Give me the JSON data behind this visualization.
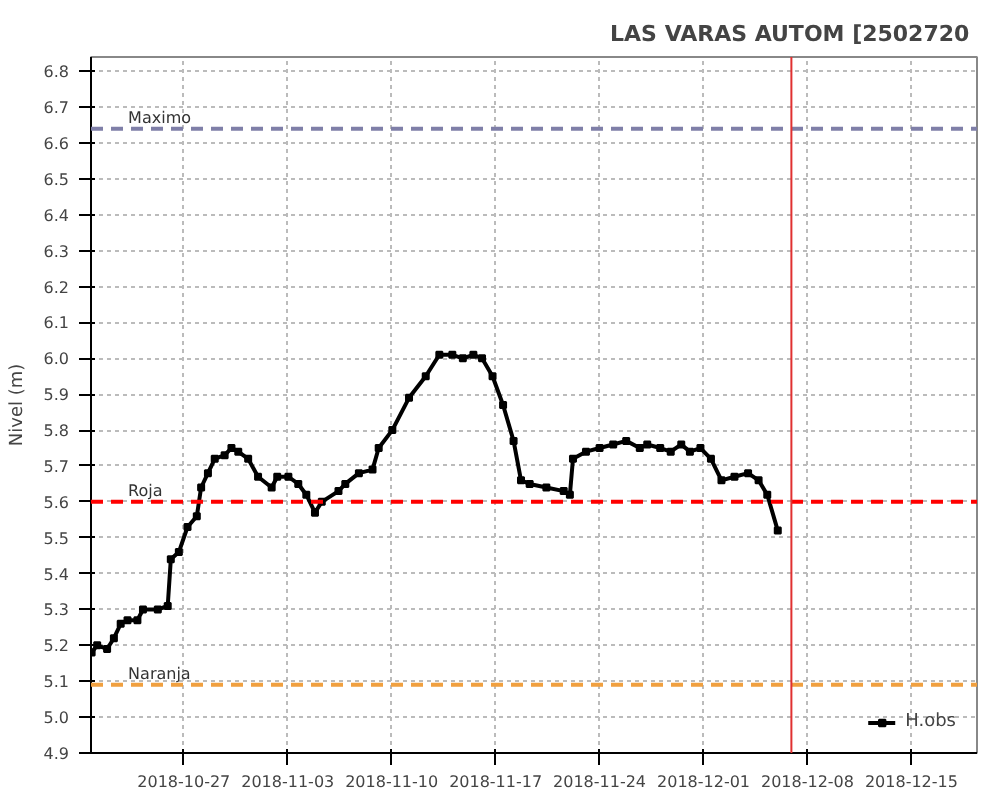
{
  "chart_data": {
    "type": "line",
    "title": "LAS VARAS AUTOM  [2502720",
    "ylabel": "Nivel (m)",
    "xlim": [
      "2018-10-20T18:00",
      "2018-12-19T10:00"
    ],
    "ylim": [
      4.9,
      6.84
    ],
    "xticks": [
      "2018-10-27",
      "2018-11-03",
      "2018-11-10",
      "2018-11-17",
      "2018-11-24",
      "2018-12-01",
      "2018-12-08",
      "2018-12-15"
    ],
    "yticks": [
      4.9,
      {
        "value": 5,
        "label": "5.0"
      },
      5.1,
      5.2,
      5.3,
      5.4,
      5.5,
      5.6,
      5.7,
      5.8,
      5.9,
      {
        "value": 6,
        "label": "6.0"
      },
      6.1,
      6.2,
      6.3,
      6.4,
      6.5,
      6.6,
      6.7,
      6.8
    ],
    "grid": true,
    "legend": "bottom right",
    "marker": "square",
    "line_style": "solid",
    "ref_lines": [
      {
        "axis": "y",
        "value": 6.64,
        "label": "Maximo",
        "color": "#7f7fa8",
        "line_style": "dashed"
      },
      {
        "axis": "y",
        "value": 5.6,
        "label": "Roja",
        "color": "#ff0000",
        "line_style": "dashed"
      },
      {
        "axis": "y",
        "value": 5.09,
        "label": "Naranja",
        "color": "#f0a040",
        "line_style": "dashed"
      },
      {
        "axis": "x",
        "value": "2018-12-06T22:00",
        "color": "#e03030",
        "line_style": "solid"
      }
    ],
    "x": [
      "2018-10-20T19:00",
      "2018-10-21T04:00",
      "2018-10-21T20:00",
      "2018-10-22T07:00",
      "2018-10-22T18:00",
      "2018-10-23T05:00",
      "2018-10-23T21:00",
      "2018-10-24T06:00",
      "2018-10-25T06:00",
      "2018-10-25T22:00",
      "2018-10-26T03:00",
      "2018-10-26T16:00",
      "2018-10-27T06:00",
      "2018-10-27T21:00",
      "2018-10-28T04:00",
      "2018-10-28T15:00",
      "2018-10-29T02:00",
      "2018-10-29T18:00",
      "2018-10-30T05:00",
      "2018-10-30T16:00",
      "2018-10-31T08:00",
      "2018-11-01T00:00",
      "2018-11-01T22:00",
      "2018-11-02T07:00",
      "2018-11-03T01:00",
      "2018-11-03T17:00",
      "2018-11-04T06:00",
      "2018-11-04T20:00",
      "2018-11-05T07:00",
      "2018-11-06T10:00",
      "2018-11-06T21:00",
      "2018-11-07T19:00",
      "2018-11-08T17:00",
      "2018-11-09T03:00",
      "2018-11-10T01:00",
      "2018-11-11T04:00",
      "2018-11-12T07:00",
      "2018-11-13T05:00",
      "2018-11-14T02:00",
      "2018-11-14T19:00",
      "2018-11-15T12:00",
      "2018-11-16T02:00",
      "2018-11-16T19:00",
      "2018-11-17T12:00",
      "2018-11-18T05:00",
      "2018-11-18T17:00",
      "2018-11-19T07:00",
      "2018-11-20T10:00",
      "2018-11-21T14:00",
      "2018-11-22T00:00",
      "2018-11-22T05:00",
      "2018-11-23T02:00",
      "2018-11-24T00:00",
      "2018-11-24T22:00",
      "2018-11-25T19:00",
      "2018-11-26T17:00",
      "2018-11-27T05:00",
      "2018-11-28T02:00",
      "2018-11-28T19:00",
      "2018-11-29T12:00",
      "2018-11-30T02:00",
      "2018-11-30T19:00",
      "2018-12-01T12:00",
      "2018-12-02T05:00",
      "2018-12-03T02:00",
      "2018-12-04T00:00",
      "2018-12-04T17:00",
      "2018-12-05T07:00",
      "2018-12-06T00:00"
    ],
    "series": [
      {
        "name": "H.obs",
        "color": "#000000",
        "values": [
          5.18,
          5.2,
          5.19,
          5.22,
          5.26,
          5.27,
          5.27,
          5.3,
          5.3,
          5.31,
          5.44,
          5.46,
          5.53,
          5.56,
          5.64,
          5.68,
          5.72,
          5.73,
          5.75,
          5.74,
          5.72,
          5.67,
          5.64,
          5.67,
          5.67,
          5.65,
          5.62,
          5.57,
          5.6,
          5.63,
          5.65,
          5.68,
          5.69,
          5.75,
          5.8,
          5.89,
          5.95,
          6.01,
          6.01,
          6.0,
          6.01,
          6.0,
          5.95,
          5.87,
          5.77,
          5.66,
          5.65,
          5.64,
          5.63,
          5.62,
          5.72,
          5.74,
          5.75,
          5.76,
          5.77,
          5.75,
          5.76,
          5.75,
          5.74,
          5.76,
          5.74,
          5.75,
          5.72,
          5.66,
          5.67,
          5.68,
          5.66,
          5.62,
          5.52
        ]
      }
    ]
  }
}
